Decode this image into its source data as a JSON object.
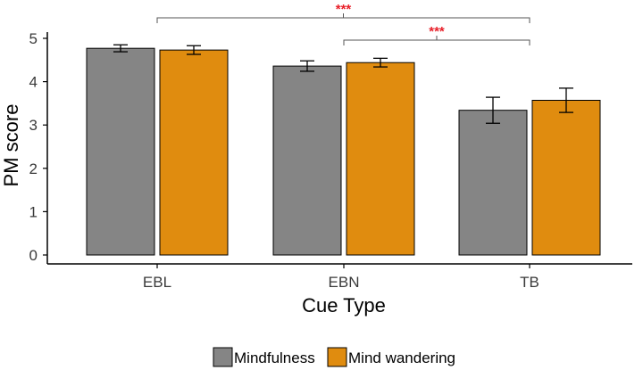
{
  "chart_data": {
    "type": "bar",
    "xlabel": "Cue Type",
    "ylabel": "PM score",
    "ylim": [
      0,
      5
    ],
    "yticks": [
      "0",
      "1",
      "2",
      "3",
      "4",
      "5"
    ],
    "categories": [
      "EBL",
      "EBN",
      "TB"
    ],
    "series": [
      {
        "name": "Mindfulness",
        "color": "#858585",
        "values": [
          4.77,
          4.36,
          3.34
        ],
        "error": [
          0.08,
          0.12,
          0.3
        ]
      },
      {
        "name": "Mind wandering",
        "color": "#e08c0f",
        "values": [
          4.73,
          4.44,
          3.57
        ],
        "error": [
          0.1,
          0.1,
          0.28
        ]
      }
    ],
    "significance": [
      {
        "from": "EBL",
        "to": "TB",
        "label": "***",
        "level": 0
      },
      {
        "from": "EBN",
        "to": "TB",
        "label": "***",
        "level": 1
      }
    ],
    "legend_position": "bottom",
    "grid": false,
    "significance_color": "#e8202a"
  }
}
